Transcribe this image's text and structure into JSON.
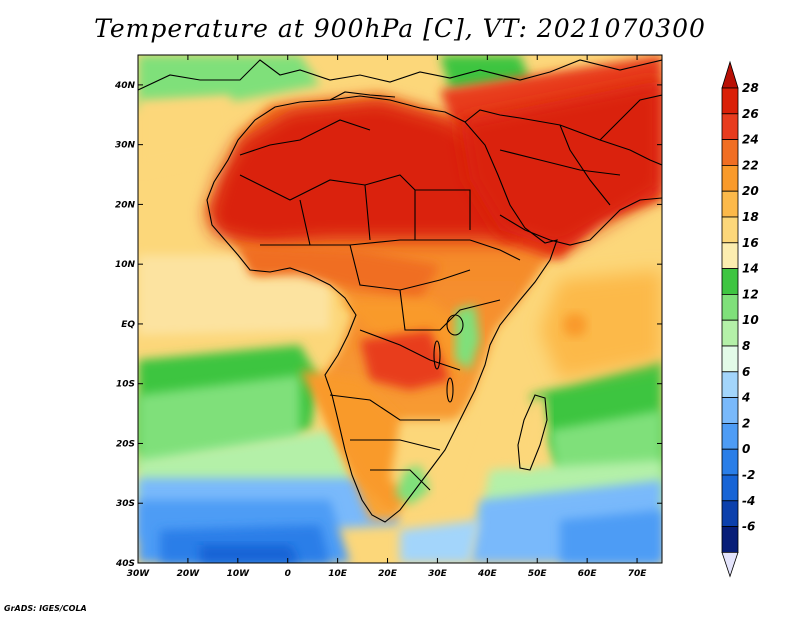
{
  "title": "Temperature at 900hPa [C], VT: 2021070300",
  "credit": "GrADS: IGES/COLA",
  "map": {
    "extent": {
      "lon_min": -30,
      "lon_max": 75,
      "lat_min": -40,
      "lat_max": 45
    },
    "lat_ticks": [
      {
        "value": 40,
        "label": "40N"
      },
      {
        "value": 30,
        "label": "30N"
      },
      {
        "value": 20,
        "label": "20N"
      },
      {
        "value": 10,
        "label": "10N"
      },
      {
        "value": 0,
        "label": "EQ"
      },
      {
        "value": -10,
        "label": "10S"
      },
      {
        "value": -20,
        "label": "20S"
      },
      {
        "value": -30,
        "label": "30S"
      },
      {
        "value": -40,
        "label": "40S"
      }
    ],
    "lon_ticks": [
      {
        "value": -30,
        "label": "30W"
      },
      {
        "value": -20,
        "label": "20W"
      },
      {
        "value": -10,
        "label": "10W"
      },
      {
        "value": 0,
        "label": "0"
      },
      {
        "value": 10,
        "label": "10E"
      },
      {
        "value": 20,
        "label": "20E"
      },
      {
        "value": 30,
        "label": "30E"
      },
      {
        "value": 40,
        "label": "40E"
      },
      {
        "value": 50,
        "label": "50E"
      },
      {
        "value": 60,
        "label": "60E"
      },
      {
        "value": 70,
        "label": "70E"
      }
    ]
  },
  "colorbar": {
    "labels": [
      "28",
      "26",
      "24",
      "22",
      "20",
      "18",
      "16",
      "14",
      "12",
      "10",
      "8",
      "6",
      "4",
      "2",
      "0",
      "-2",
      "-4",
      "-6"
    ],
    "colors": [
      "#da2008",
      "#e83c1e",
      "#f06e23",
      "#f99a2b",
      "#fcb94a",
      "#fcd77a",
      "#fcedb0",
      "#3ec541",
      "#7fe07a",
      "#b4f0a8",
      "#e3fbe8",
      "#a3d5fb",
      "#79b9fb",
      "#4e9cf5",
      "#2a7ee8",
      "#1764d6",
      "#0c40ac",
      "#081e78"
    ],
    "arrow_top_color": "#b81006",
    "arrow_bottom_color": "#e4e4fc"
  }
}
